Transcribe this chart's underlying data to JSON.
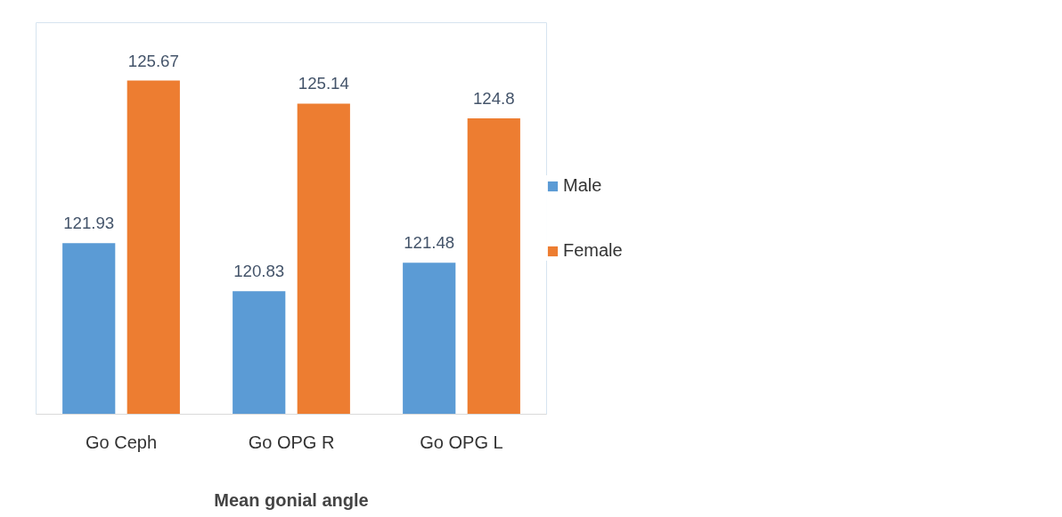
{
  "chart_data": {
    "type": "bar",
    "xlabel": "Mean gonial angle",
    "categories": [
      "Go Ceph",
      "Go OPG R",
      "Go OPG L"
    ],
    "series": [
      {
        "name": "Male",
        "color": "#5b9bd5",
        "values": [
          121.93,
          120.83,
          121.48
        ]
      },
      {
        "name": "Female",
        "color": "#ed7d31",
        "values": [
          125.67,
          125.14,
          124.8
        ]
      }
    ],
    "ylim": [
      118,
      127
    ],
    "data_labels": true,
    "legend": "right",
    "grid": false
  }
}
